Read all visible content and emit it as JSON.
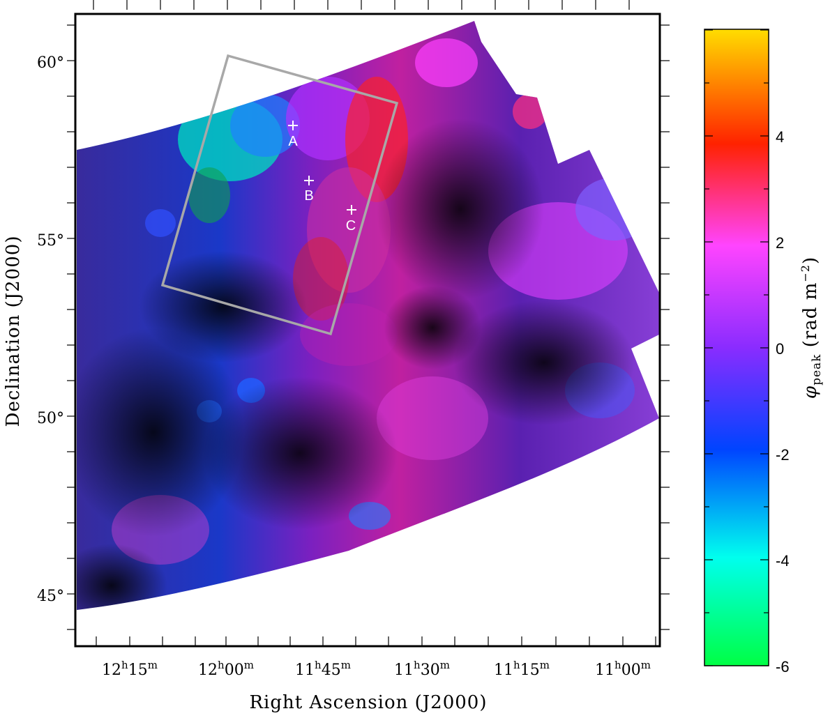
{
  "axes": {
    "xlabel": "Right Ascension (J2000)",
    "ylabel": "Declination (J2000)",
    "ra_ticks": [
      {
        "h": "12",
        "m": "15"
      },
      {
        "h": "12",
        "m": "00"
      },
      {
        "h": "11",
        "m": "45"
      },
      {
        "h": "11",
        "m": "30"
      },
      {
        "h": "11",
        "m": "15"
      },
      {
        "h": "11",
        "m": "00"
      }
    ],
    "dec_ticks": [
      "60°",
      "55°",
      "50°",
      "45°"
    ]
  },
  "colorbar": {
    "label_symbol": "φ",
    "label_sub": "peak",
    "label_unit": "(rad m",
    "label_exp": "−2",
    "label_close": ")",
    "ticks": [
      "4",
      "2",
      "0",
      "-2",
      "-4",
      "-6"
    ],
    "range": [
      -6,
      6
    ],
    "colors": [
      "#00ff44",
      "#00ffee",
      "#0044ff",
      "#8a2cff",
      "#ff44ff",
      "#ff2200",
      "#ffdd00"
    ]
  },
  "markers": [
    {
      "label": "A"
    },
    {
      "label": "B"
    },
    {
      "label": "C"
    }
  ],
  "box_color": "#a8a8a8"
}
